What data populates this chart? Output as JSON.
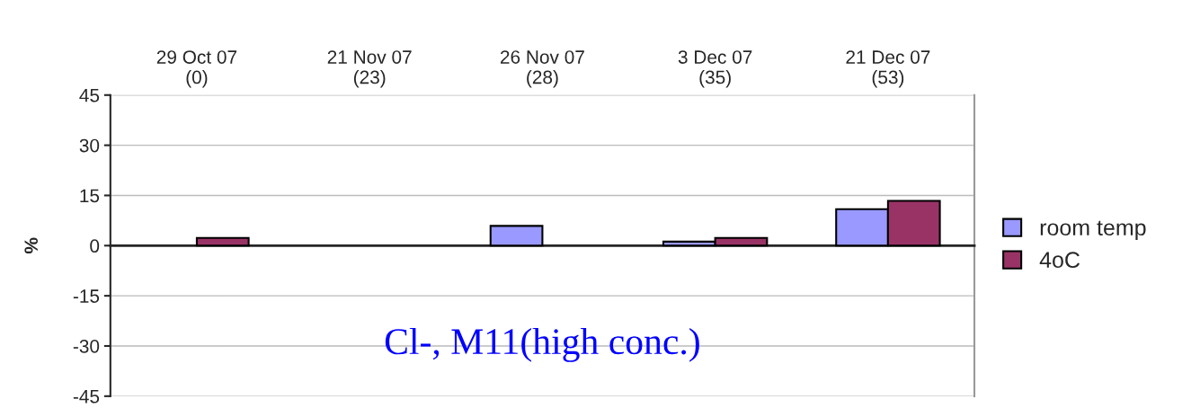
{
  "chart_data": {
    "type": "bar",
    "categories": [
      "29 Oct 07\n(0)",
      "21 Nov 07\n(23)",
      "26 Nov 07\n(28)",
      "3 Dec 07\n(35)",
      "21 Dec 07\n(53)"
    ],
    "series": [
      {
        "name": "room temp",
        "color": "#9999ff",
        "values": [
          null,
          null,
          5.9,
          1.2,
          10.9
        ]
      },
      {
        "name": "4oC",
        "color": "#993366",
        "values": [
          2.3,
          null,
          null,
          2.3,
          13.4
        ]
      }
    ],
    "ylabel": "%",
    "ylim": [
      -45,
      45
    ],
    "yticks": [
      -45,
      -30,
      -15,
      0,
      15,
      30,
      45
    ],
    "grid": "y",
    "legend": "right",
    "annotations": [
      {
        "text": "Cl-, M11(high conc.)"
      }
    ]
  }
}
